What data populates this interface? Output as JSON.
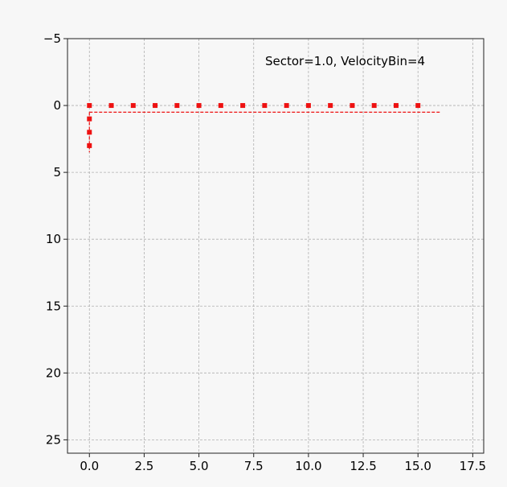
{
  "chart_data": {
    "type": "scatter",
    "title": "",
    "xlabel": "",
    "ylabel": "",
    "xlim": [
      -1.0,
      18.0
    ],
    "ylim": [
      26,
      -5
    ],
    "y_inverted": true,
    "grid": true,
    "x_ticks": [
      0.0,
      2.5,
      5.0,
      7.5,
      10.0,
      12.5,
      15.0,
      17.5
    ],
    "x_tick_labels": [
      "0.0",
      "2.5",
      "5.0",
      "7.5",
      "10.0",
      "12.5",
      "15.0",
      "17.5"
    ],
    "y_ticks": [
      -5,
      0,
      5,
      10,
      15,
      20,
      25
    ],
    "y_tick_labels": [
      "−5",
      "0",
      "5",
      "10",
      "15",
      "20",
      "25"
    ],
    "annotation": "Sector=1.0, VelocityBin=4",
    "marker_color": "#ee1111",
    "points": [
      {
        "x": 0,
        "y": 0
      },
      {
        "x": 1,
        "y": 0
      },
      {
        "x": 2,
        "y": 0
      },
      {
        "x": 3,
        "y": 0
      },
      {
        "x": 4,
        "y": 0
      },
      {
        "x": 5,
        "y": 0
      },
      {
        "x": 6,
        "y": 0
      },
      {
        "x": 7,
        "y": 0
      },
      {
        "x": 8,
        "y": 0
      },
      {
        "x": 9,
        "y": 0
      },
      {
        "x": 10,
        "y": 0
      },
      {
        "x": 11,
        "y": 0
      },
      {
        "x": 12,
        "y": 0
      },
      {
        "x": 13,
        "y": 0
      },
      {
        "x": 14,
        "y": 0
      },
      {
        "x": 15,
        "y": 0
      },
      {
        "x": 0,
        "y": 1
      },
      {
        "x": 0,
        "y": 2
      },
      {
        "x": 0,
        "y": 3
      }
    ],
    "lines": [
      {
        "style": "dashed",
        "color": "#ee1111",
        "x": [
          0,
          16
        ],
        "y": [
          0.5,
          0.5
        ]
      },
      {
        "style": "dashed",
        "color": "#ee1111",
        "x": [
          0,
          0
        ],
        "y": [
          0.5,
          3.5
        ]
      }
    ]
  }
}
